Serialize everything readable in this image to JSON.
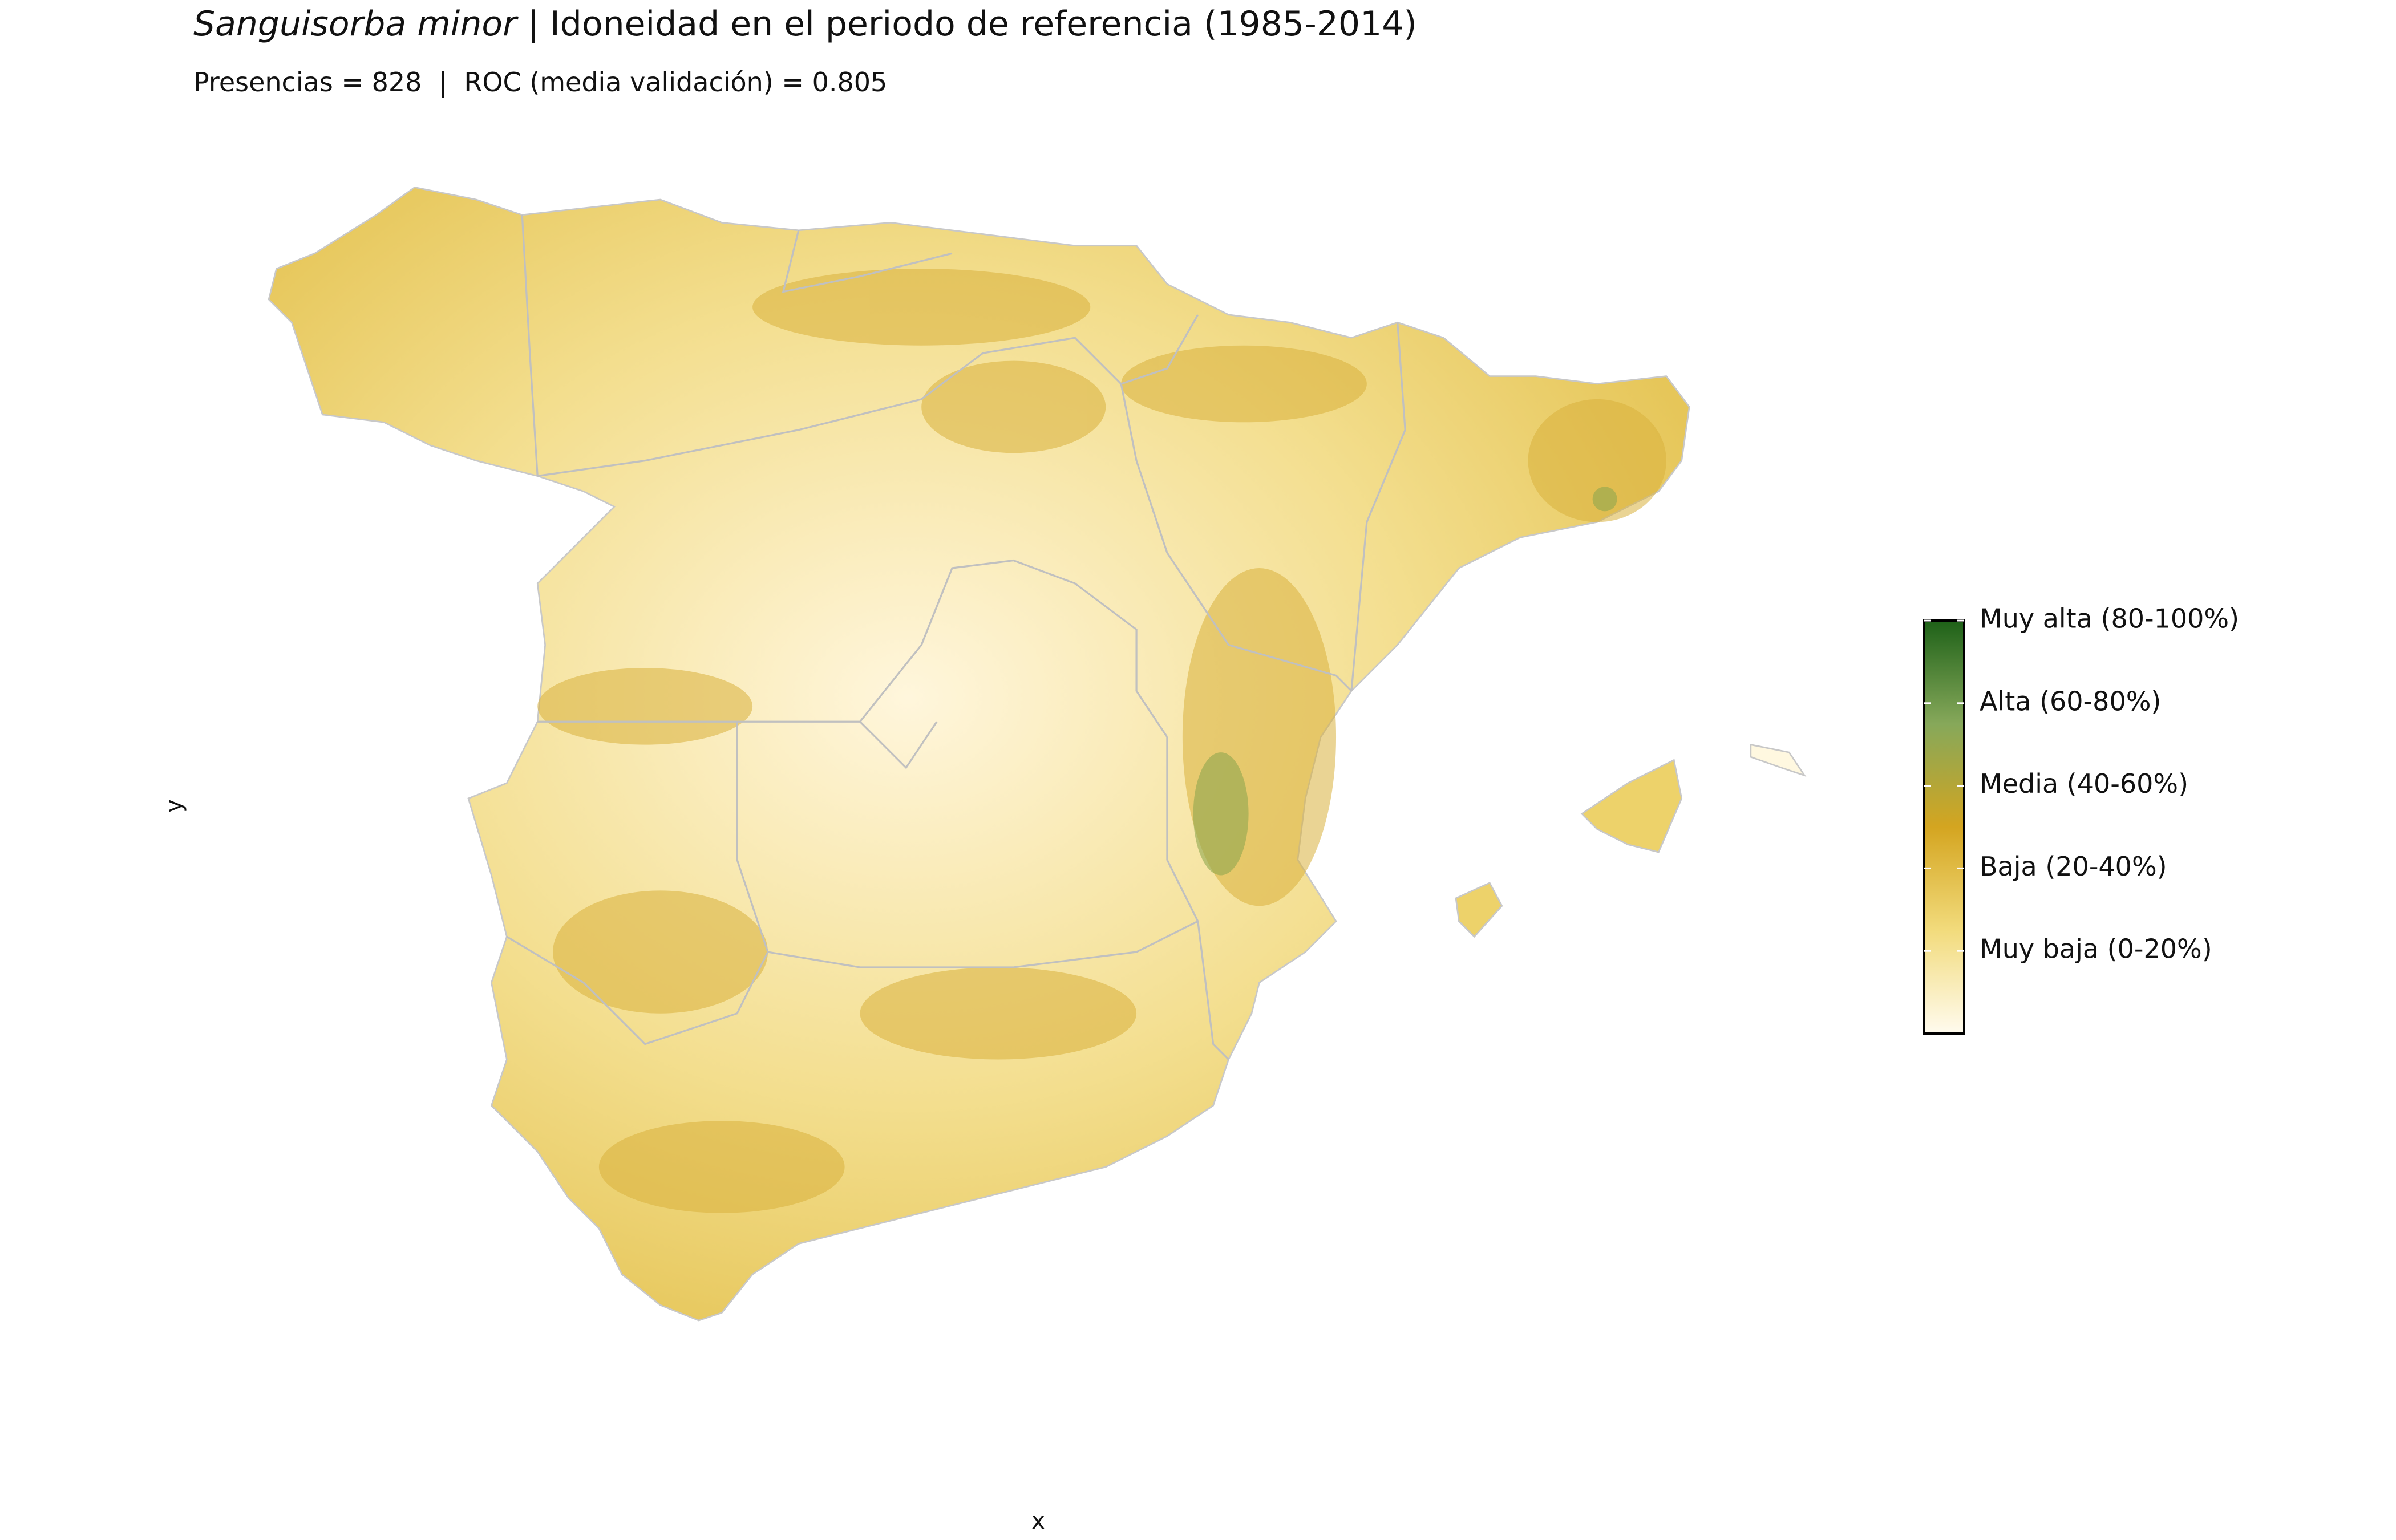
{
  "header": {
    "title_species": "Sanguisorba minor",
    "title_rest": " | Idoneidad en el periodo de referencia (1985-2014)",
    "subtitle": "Presencias = 828  |  ROC (media validación) = 0.805"
  },
  "axes": {
    "x_label": "x",
    "y_label": "y"
  },
  "legend": {
    "limits": [
      0,
      1
    ],
    "colors": [
      "#fffbee",
      "#f2db7c",
      "#d4a520",
      "#86a85a",
      "#1e6118"
    ],
    "ticks": [
      {
        "value": 1,
        "label": "Muy alta (80-100%)"
      },
      {
        "value": 0.8,
        "label": "Alta (60-80%)"
      },
      {
        "value": 0.6,
        "label": "Media (40-60%)"
      },
      {
        "value": 0.4,
        "label": "Baja (20-40%)"
      },
      {
        "value": 0.2,
        "label": "Muy baja (0-20%)"
      }
    ]
  }
}
